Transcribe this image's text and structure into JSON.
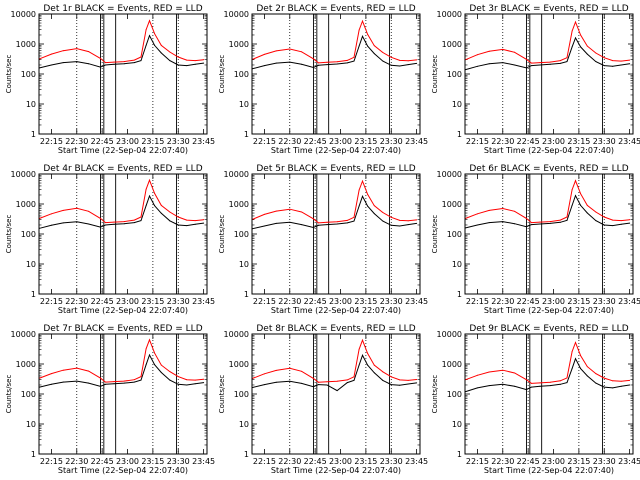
{
  "chart_data": [
    {
      "type": "line",
      "title": "Det 1r BLACK = Events, RED = LLD",
      "xlabel": "Start Time (22-Sep-04 22:07:40)",
      "ylabel": "Counts/sec",
      "y_scale": "log",
      "ylim": [
        1,
        10000
      ],
      "xlim": [
        "22:07:40",
        "23:47:00"
      ],
      "x_ticks": [
        "22:15",
        "22:30",
        "22:45",
        "23:00",
        "23:15",
        "23:30",
        "23:45"
      ],
      "y_ticks": [
        "1",
        "10",
        "100",
        "1000",
        "10000"
      ],
      "vertical_lines": {
        "dotted": [
          "22:30",
          "22:45",
          "23:15",
          "23:30"
        ],
        "solid": [
          "22:44",
          "22:46",
          "22:53",
          "23:29"
        ]
      },
      "x": [
        "22:08",
        "22:15",
        "22:22",
        "22:30",
        "22:37",
        "22:44",
        "22:47",
        "22:52",
        "22:58",
        "23:04",
        "23:08",
        "23:11",
        "23:13",
        "23:16",
        "23:20",
        "23:25",
        "23:30",
        "23:35",
        "23:40",
        "23:45"
      ],
      "series": [
        {
          "name": "Events",
          "color": "#000000",
          "values": [
            160,
            200,
            240,
            260,
            220,
            170,
            200,
            210,
            220,
            240,
            280,
            900,
            1900,
            900,
            500,
            280,
            200,
            190,
            210,
            230
          ]
        },
        {
          "name": "LLD",
          "color": "#ff0000",
          "values": [
            320,
            460,
            600,
            700,
            560,
            330,
            240,
            250,
            260,
            290,
            370,
            3000,
            6000,
            2200,
            900,
            540,
            370,
            290,
            280,
            300
          ]
        }
      ]
    },
    {
      "type": "line",
      "title": "Det 2r BLACK = Events, RED = LLD",
      "xlabel": "Start Time (22-Sep-04 22:07:40)",
      "ylabel": "Counts/sec",
      "y_scale": "log",
      "ylim": [
        1,
        10000
      ],
      "xlim": [
        "22:07:40",
        "23:47:00"
      ],
      "x_ticks": [
        "22:15",
        "22:30",
        "22:45",
        "23:00",
        "23:15",
        "23:30",
        "23:45"
      ],
      "y_ticks": [
        "1",
        "10",
        "100",
        "1000",
        "10000"
      ],
      "vertical_lines": {
        "dotted": [
          "22:30",
          "22:45",
          "23:15",
          "23:30"
        ],
        "solid": [
          "22:44",
          "22:46",
          "22:53",
          "23:29"
        ]
      },
      "x": [
        "22:08",
        "22:15",
        "22:22",
        "22:30",
        "22:37",
        "22:44",
        "22:47",
        "22:52",
        "22:58",
        "23:04",
        "23:08",
        "23:11",
        "23:13",
        "23:16",
        "23:20",
        "23:25",
        "23:30",
        "23:35",
        "23:40",
        "23:45"
      ],
      "series": [
        {
          "name": "Events",
          "color": "#000000",
          "values": [
            150,
            190,
            230,
            250,
            210,
            165,
            195,
            205,
            215,
            235,
            270,
            850,
            1800,
            850,
            480,
            270,
            195,
            185,
            205,
            225
          ]
        },
        {
          "name": "LLD",
          "color": "#ff0000",
          "values": [
            310,
            450,
            590,
            680,
            550,
            320,
            235,
            245,
            255,
            285,
            360,
            2900,
            5800,
            2100,
            880,
            520,
            360,
            285,
            275,
            295
          ]
        }
      ]
    },
    {
      "type": "line",
      "title": "Det 3r BLACK = Events, RED = LLD",
      "xlabel": "Start Time (22-Sep-04 22:07:40)",
      "ylabel": "Counts/sec",
      "y_scale": "log",
      "ylim": [
        1,
        10000
      ],
      "xlim": [
        "22:07:40",
        "23:47:00"
      ],
      "x_ticks": [
        "22:15",
        "22:30",
        "22:45",
        "23:00",
        "23:15",
        "23:30",
        "23:45"
      ],
      "y_ticks": [
        "1",
        "10",
        "100",
        "1000",
        "10000"
      ],
      "vertical_lines": {
        "dotted": [
          "22:30",
          "22:45",
          "23:15",
          "23:30"
        ],
        "solid": [
          "22:44",
          "22:46",
          "22:53",
          "23:29"
        ]
      },
      "x": [
        "22:08",
        "22:15",
        "22:22",
        "22:30",
        "22:37",
        "22:44",
        "22:47",
        "22:52",
        "22:58",
        "23:04",
        "23:08",
        "23:11",
        "23:13",
        "23:16",
        "23:20",
        "23:25",
        "23:30",
        "23:35",
        "23:40",
        "23:45"
      ],
      "series": [
        {
          "name": "Events",
          "color": "#000000",
          "values": [
            140,
            180,
            220,
            240,
            200,
            160,
            190,
            200,
            210,
            225,
            260,
            800,
            1600,
            800,
            460,
            260,
            190,
            180,
            200,
            220
          ]
        },
        {
          "name": "LLD",
          "color": "#ff0000",
          "values": [
            300,
            440,
            570,
            660,
            530,
            310,
            230,
            240,
            250,
            280,
            350,
            2700,
            5400,
            2000,
            850,
            500,
            350,
            280,
            270,
            290
          ]
        }
      ]
    },
    {
      "type": "line",
      "title": "Det 4r BLACK = Events, RED = LLD",
      "xlabel": "Start Time (22-Sep-04 22:07:40)",
      "ylabel": "Counts/sec",
      "y_scale": "log",
      "ylim": [
        1,
        10000
      ],
      "xlim": [
        "22:07:40",
        "23:47:00"
      ],
      "x_ticks": [
        "22:15",
        "22:30",
        "22:45",
        "23:00",
        "23:15",
        "23:30",
        "23:45"
      ],
      "y_ticks": [
        "1",
        "10",
        "100",
        "1000",
        "10000"
      ],
      "vertical_lines": {
        "dotted": [
          "22:30",
          "22:45",
          "23:15",
          "23:30"
        ],
        "solid": [
          "22:44",
          "22:46",
          "22:53",
          "23:29"
        ]
      },
      "x": [
        "22:08",
        "22:15",
        "22:22",
        "22:30",
        "22:37",
        "22:44",
        "22:47",
        "22:52",
        "22:58",
        "23:04",
        "23:08",
        "23:11",
        "23:13",
        "23:16",
        "23:20",
        "23:25",
        "23:30",
        "23:35",
        "23:40",
        "23:45"
      ],
      "series": [
        {
          "name": "Events",
          "color": "#000000",
          "values": [
            155,
            195,
            235,
            255,
            215,
            170,
            200,
            210,
            220,
            240,
            280,
            880,
            1850,
            880,
            490,
            275,
            200,
            190,
            210,
            230
          ]
        },
        {
          "name": "LLD",
          "color": "#ff0000",
          "values": [
            330,
            470,
            610,
            720,
            570,
            330,
            240,
            250,
            260,
            290,
            370,
            3100,
            6200,
            2250,
            900,
            540,
            370,
            290,
            280,
            300
          ]
        }
      ]
    },
    {
      "type": "line",
      "title": "Det 5r BLACK = Events, RED = LLD",
      "xlabel": "Start Time (22-Sep-04 22:07:40)",
      "ylabel": "Counts/sec",
      "y_scale": "log",
      "ylim": [
        1,
        10000
      ],
      "xlim": [
        "22:07:40",
        "23:47:00"
      ],
      "x_ticks": [
        "22:15",
        "22:30",
        "22:45",
        "23:00",
        "23:15",
        "23:30",
        "23:45"
      ],
      "y_ticks": [
        "1",
        "10",
        "100",
        "1000",
        "10000"
      ],
      "vertical_lines": {
        "dotted": [
          "22:30",
          "22:45",
          "23:15",
          "23:30"
        ],
        "solid": [
          "22:44",
          "22:46",
          "22:53",
          "23:29"
        ]
      },
      "x": [
        "22:08",
        "22:15",
        "22:22",
        "22:30",
        "22:37",
        "22:44",
        "22:47",
        "22:52",
        "22:58",
        "23:04",
        "23:08",
        "23:11",
        "23:13",
        "23:16",
        "23:20",
        "23:25",
        "23:30",
        "23:35",
        "23:40",
        "23:45"
      ],
      "series": [
        {
          "name": "Events",
          "color": "#000000",
          "values": [
            150,
            185,
            225,
            245,
            205,
            165,
            195,
            205,
            215,
            235,
            270,
            850,
            1800,
            850,
            480,
            270,
            195,
            185,
            205,
            225
          ]
        },
        {
          "name": "LLD",
          "color": "#ff0000",
          "values": [
            310,
            450,
            580,
            670,
            540,
            320,
            235,
            245,
            255,
            285,
            360,
            2900,
            5800,
            2100,
            880,
            520,
            360,
            285,
            275,
            295
          ]
        }
      ]
    },
    {
      "type": "line",
      "title": "Det 6r BLACK = Events, RED = LLD",
      "xlabel": "Start Time (22-Sep-04 22:07:40)",
      "ylabel": "Counts/sec",
      "y_scale": "log",
      "ylim": [
        1,
        10000
      ],
      "xlim": [
        "22:07:40",
        "23:47:00"
      ],
      "x_ticks": [
        "22:15",
        "22:30",
        "22:45",
        "23:00",
        "23:15",
        "23:30",
        "23:45"
      ],
      "y_ticks": [
        "1",
        "10",
        "100",
        "1000",
        "10000"
      ],
      "vertical_lines": {
        "dotted": [
          "22:30",
          "22:45",
          "23:15",
          "23:30"
        ],
        "solid": [
          "22:44",
          "22:46",
          "22:53",
          "23:29"
        ]
      },
      "x": [
        "22:08",
        "22:15",
        "22:22",
        "22:30",
        "22:37",
        "22:44",
        "22:47",
        "22:52",
        "22:58",
        "23:04",
        "23:08",
        "23:11",
        "23:13",
        "23:16",
        "23:20",
        "23:25",
        "23:30",
        "23:35",
        "23:40",
        "23:45"
      ],
      "series": [
        {
          "name": "Events",
          "color": "#000000",
          "values": [
            160,
            200,
            240,
            260,
            220,
            175,
            205,
            215,
            225,
            245,
            285,
            900,
            1900,
            900,
            500,
            280,
            200,
            190,
            210,
            230
          ]
        },
        {
          "name": "LLD",
          "color": "#ff0000",
          "values": [
            330,
            470,
            610,
            710,
            570,
            330,
            240,
            250,
            260,
            290,
            370,
            3000,
            6000,
            2200,
            900,
            540,
            370,
            290,
            280,
            300
          ]
        }
      ]
    },
    {
      "type": "line",
      "title": "Det 7r BLACK = Events, RED = LLD",
      "xlabel": "Start Time (22-Sep-04 22:07:40)",
      "ylabel": "Counts/sec",
      "y_scale": "log",
      "ylim": [
        1,
        10000
      ],
      "xlim": [
        "22:07:40",
        "23:47:00"
      ],
      "x_ticks": [
        "22:15",
        "22:30",
        "22:45",
        "23:00",
        "23:15",
        "23:30",
        "23:45"
      ],
      "y_ticks": [
        "1",
        "10",
        "100",
        "1000",
        "10000"
      ],
      "vertical_lines": {
        "dotted": [
          "22:30",
          "22:45",
          "23:15",
          "23:30"
        ],
        "solid": [
          "22:44",
          "22:46",
          "22:53",
          "23:29"
        ]
      },
      "x": [
        "22:08",
        "22:15",
        "22:22",
        "22:30",
        "22:37",
        "22:44",
        "22:47",
        "22:52",
        "22:58",
        "23:04",
        "23:08",
        "23:11",
        "23:13",
        "23:16",
        "23:20",
        "23:25",
        "23:30",
        "23:35",
        "23:40",
        "23:45"
      ],
      "series": [
        {
          "name": "Events",
          "color": "#000000",
          "values": [
            170,
            210,
            250,
            270,
            230,
            180,
            210,
            220,
            230,
            250,
            290,
            950,
            2000,
            950,
            520,
            290,
            210,
            200,
            220,
            240
          ]
        },
        {
          "name": "LLD",
          "color": "#ff0000",
          "values": [
            340,
            480,
            620,
            730,
            580,
            340,
            250,
            260,
            270,
            300,
            380,
            3200,
            6400,
            2300,
            920,
            560,
            380,
            300,
            290,
            310
          ]
        }
      ]
    },
    {
      "type": "line",
      "title": "Det 8r BLACK = Events, RED = LLD",
      "xlabel": "Start Time (22-Sep-04 22:07:40)",
      "ylabel": "Counts/sec",
      "y_scale": "log",
      "ylim": [
        1,
        10000
      ],
      "xlim": [
        "22:07:40",
        "23:47:00"
      ],
      "x_ticks": [
        "22:15",
        "22:30",
        "22:45",
        "23:00",
        "23:15",
        "23:30",
        "23:45"
      ],
      "y_ticks": [
        "1",
        "10",
        "100",
        "1000",
        "10000"
      ],
      "vertical_lines": {
        "dotted": [
          "22:30",
          "22:45",
          "23:15",
          "23:30"
        ],
        "solid": [
          "22:44",
          "22:46",
          "22:53",
          "23:29"
        ]
      },
      "x": [
        "22:08",
        "22:15",
        "22:22",
        "22:30",
        "22:37",
        "22:44",
        "22:47",
        "22:52",
        "22:58",
        "23:04",
        "23:08",
        "23:11",
        "23:13",
        "23:16",
        "23:20",
        "23:25",
        "23:30",
        "23:35",
        "23:40",
        "23:45"
      ],
      "series": [
        {
          "name": "Events",
          "color": "#000000",
          "values": [
            165,
            205,
            245,
            265,
            225,
            175,
            205,
            200,
            130,
            240,
            285,
            920,
            1950,
            920,
            510,
            285,
            205,
            195,
            215,
            235
          ]
        },
        {
          "name": "LLD",
          "color": "#ff0000",
          "values": [
            330,
            470,
            610,
            720,
            570,
            330,
            245,
            255,
            265,
            295,
            375,
            3100,
            6200,
            2250,
            910,
            550,
            375,
            295,
            285,
            305
          ]
        }
      ]
    },
    {
      "type": "line",
      "title": "Det 9r BLACK = Events, RED = LLD",
      "xlabel": "Start Time (22-Sep-04 22:07:40)",
      "ylabel": "Counts/sec",
      "y_scale": "log",
      "ylim": [
        1,
        10000
      ],
      "xlim": [
        "22:07:40",
        "23:47:00"
      ],
      "x_ticks": [
        "22:15",
        "22:30",
        "22:45",
        "23:00",
        "23:15",
        "23:30",
        "23:45"
      ],
      "y_ticks": [
        "1",
        "10",
        "100",
        "1000",
        "10000"
      ],
      "vertical_lines": {
        "dotted": [
          "22:30",
          "22:45",
          "23:15",
          "23:30"
        ],
        "solid": [
          "22:44",
          "22:46",
          "22:53",
          "23:29"
        ]
      },
      "x": [
        "22:08",
        "22:15",
        "22:22",
        "22:30",
        "22:37",
        "22:44",
        "22:47",
        "22:52",
        "22:58",
        "23:04",
        "23:08",
        "23:11",
        "23:13",
        "23:16",
        "23:20",
        "23:25",
        "23:30",
        "23:35",
        "23:40",
        "23:45"
      ],
      "series": [
        {
          "name": "Events",
          "color": "#000000",
          "values": [
            120,
            160,
            190,
            210,
            180,
            140,
            170,
            180,
            190,
            210,
            240,
            700,
            1500,
            700,
            400,
            230,
            170,
            160,
            180,
            200
          ]
        },
        {
          "name": "LLD",
          "color": "#ff0000",
          "values": [
            300,
            420,
            540,
            620,
            500,
            300,
            225,
            235,
            245,
            275,
            345,
            2600,
            5200,
            1900,
            820,
            480,
            340,
            275,
            265,
            285
          ]
        }
      ]
    }
  ]
}
